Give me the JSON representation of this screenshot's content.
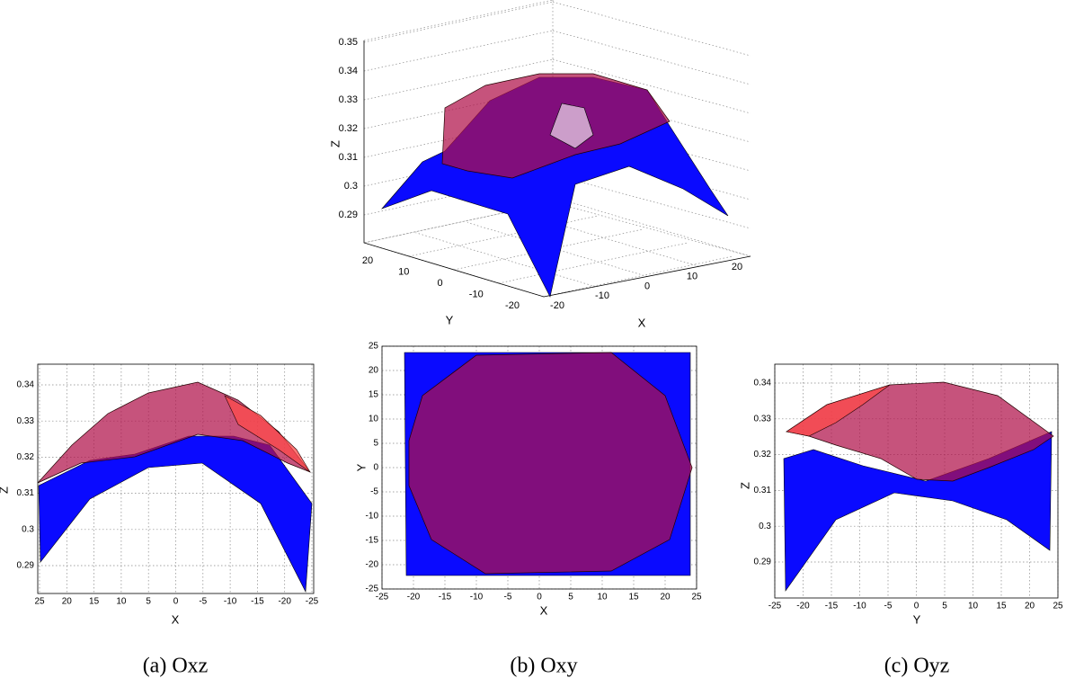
{
  "top": {
    "xlabel": "X",
    "ylabel": "Y",
    "zlabel": "Z",
    "xticks": [
      -20,
      -10,
      0,
      10,
      20
    ],
    "yticks": [
      20,
      10,
      0,
      -10,
      -20
    ],
    "zticks": [
      0.35,
      0.34,
      0.33,
      0.32,
      0.31,
      0.3,
      0.29
    ]
  },
  "panels": [
    {
      "xlabel": "X",
      "ylabel": "Z",
      "xticks": [
        25,
        20,
        15,
        10,
        5,
        0,
        -5,
        -10,
        -15,
        -20,
        -25
      ],
      "yticks": [
        0.34,
        0.33,
        0.32,
        0.31,
        0.3,
        0.29
      ],
      "caption": "(a) Oxz"
    },
    {
      "xlabel": "X",
      "ylabel": "Y",
      "xticks": [
        -25,
        -20,
        -15,
        -10,
        -5,
        0,
        5,
        10,
        15,
        20,
        25
      ],
      "yticks": [
        25,
        20,
        15,
        10,
        5,
        0,
        -5,
        -10,
        -15,
        -20,
        -25
      ],
      "caption": "(b) Oxy"
    },
    {
      "xlabel": "Y",
      "ylabel": "Z",
      "xticks": [
        -25,
        -20,
        -15,
        -10,
        -5,
        0,
        5,
        10,
        15,
        20,
        25
      ],
      "yticks": [
        0.34,
        0.33,
        0.32,
        0.31,
        0.3,
        0.29
      ],
      "caption": "(c) Oyz"
    }
  ]
}
